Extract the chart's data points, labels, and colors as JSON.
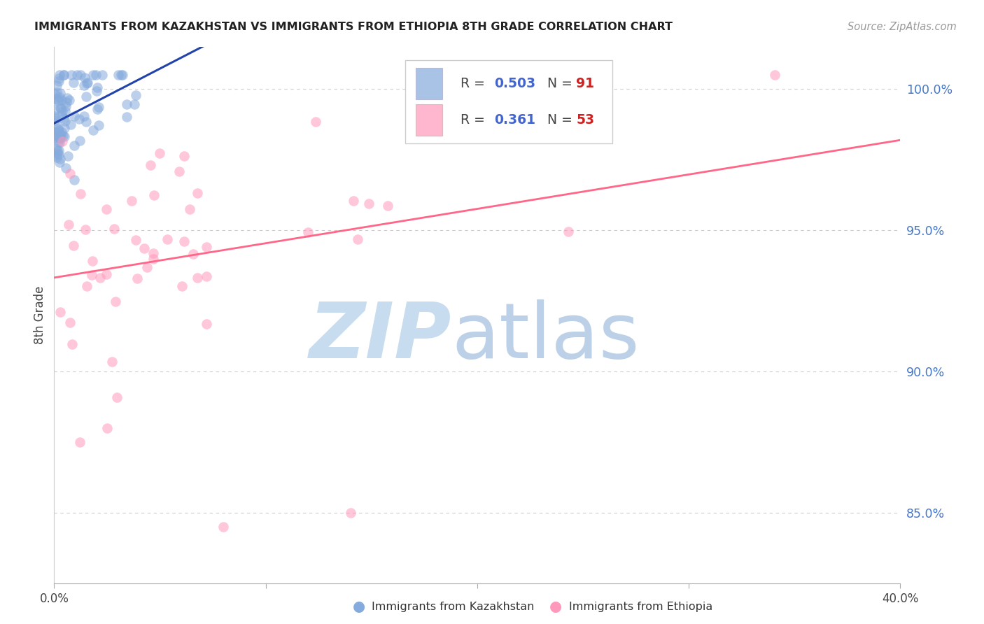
{
  "title": "IMMIGRANTS FROM KAZAKHSTAN VS IMMIGRANTS FROM ETHIOPIA 8TH GRADE CORRELATION CHART",
  "source": "Source: ZipAtlas.com",
  "ylabel": "8th Grade",
  "xmin": 0.0,
  "xmax": 40.0,
  "ymin": 82.5,
  "ymax": 101.5,
  "kazakhstan_color": "#85AADD",
  "ethiopia_color": "#FF99BB",
  "kazakhstan_line_color": "#2244AA",
  "ethiopia_line_color": "#FF6688",
  "kazakhstan_R": 0.503,
  "kazakhstan_N": 91,
  "ethiopia_R": 0.361,
  "ethiopia_N": 53,
  "legend_R_color": "#4466CC",
  "legend_N_color": "#CC2222",
  "right_yticks": [
    85.0,
    90.0,
    95.0,
    100.0
  ],
  "gridline_color": "#cccccc",
  "watermark_zip_color": "#C8DCEF",
  "watermark_atlas_color": "#A0BEDD"
}
